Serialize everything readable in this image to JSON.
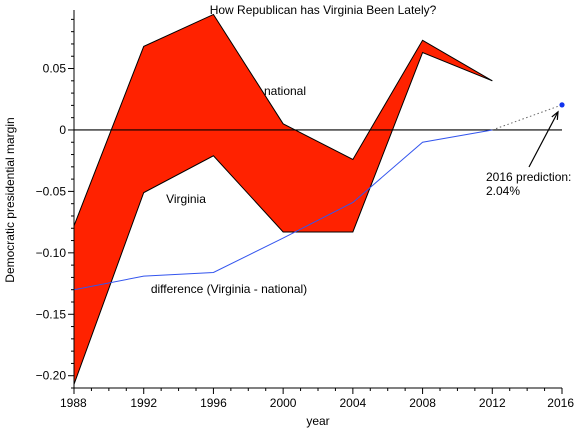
{
  "chart_data": {
    "type": "line",
    "title": "How Republican has Virginia Been Lately?",
    "xlabel": "year",
    "ylabel": "Democratic presidential margin",
    "xlim": [
      1988,
      2016
    ],
    "ylim": [
      -0.21,
      0.096
    ],
    "x_ticks": [
      1988,
      1992,
      1996,
      2000,
      2004,
      2008,
      2012,
      2016
    ],
    "y_ticks": [
      {
        "value": -0.2,
        "label": "−0.20"
      },
      {
        "value": -0.15,
        "label": "−0.15"
      },
      {
        "value": -0.1,
        "label": "−0.10"
      },
      {
        "value": -0.05,
        "label": "−0.05"
      },
      {
        "value": 0,
        "label": "0"
      },
      {
        "value": 0.05,
        "label": "0.05"
      }
    ],
    "x": [
      1988,
      1992,
      1996,
      2000,
      2004,
      2008,
      2012
    ],
    "series": [
      {
        "name": "national",
        "values": [
          -0.078,
          0.068,
          0.094,
          0.005,
          -0.024,
          0.073,
          0.04
        ]
      },
      {
        "name": "Virginia",
        "values": [
          -0.207,
          -0.051,
          -0.021,
          -0.083,
          -0.083,
          0.063,
          0.04
        ]
      },
      {
        "name": "difference (Virginia - national)",
        "x": [
          1988,
          1992,
          1996,
          2000,
          2004,
          2008,
          2012
        ],
        "values": [
          -0.13,
          -0.119,
          -0.116,
          -0.088,
          -0.059,
          -0.01,
          0.0
        ]
      }
    ],
    "projection": {
      "from": [
        2012,
        0.0
      ],
      "to": [
        2016,
        0.0204
      ]
    },
    "prediction_label": "2016 prediction:\n2.04%",
    "labels": {
      "national": "national",
      "virginia": "Virginia",
      "difference": "difference (Virginia - national)"
    },
    "colors": {
      "fill": "#ff2200",
      "difference": "#3355ee",
      "point": "#1133ee"
    }
  }
}
